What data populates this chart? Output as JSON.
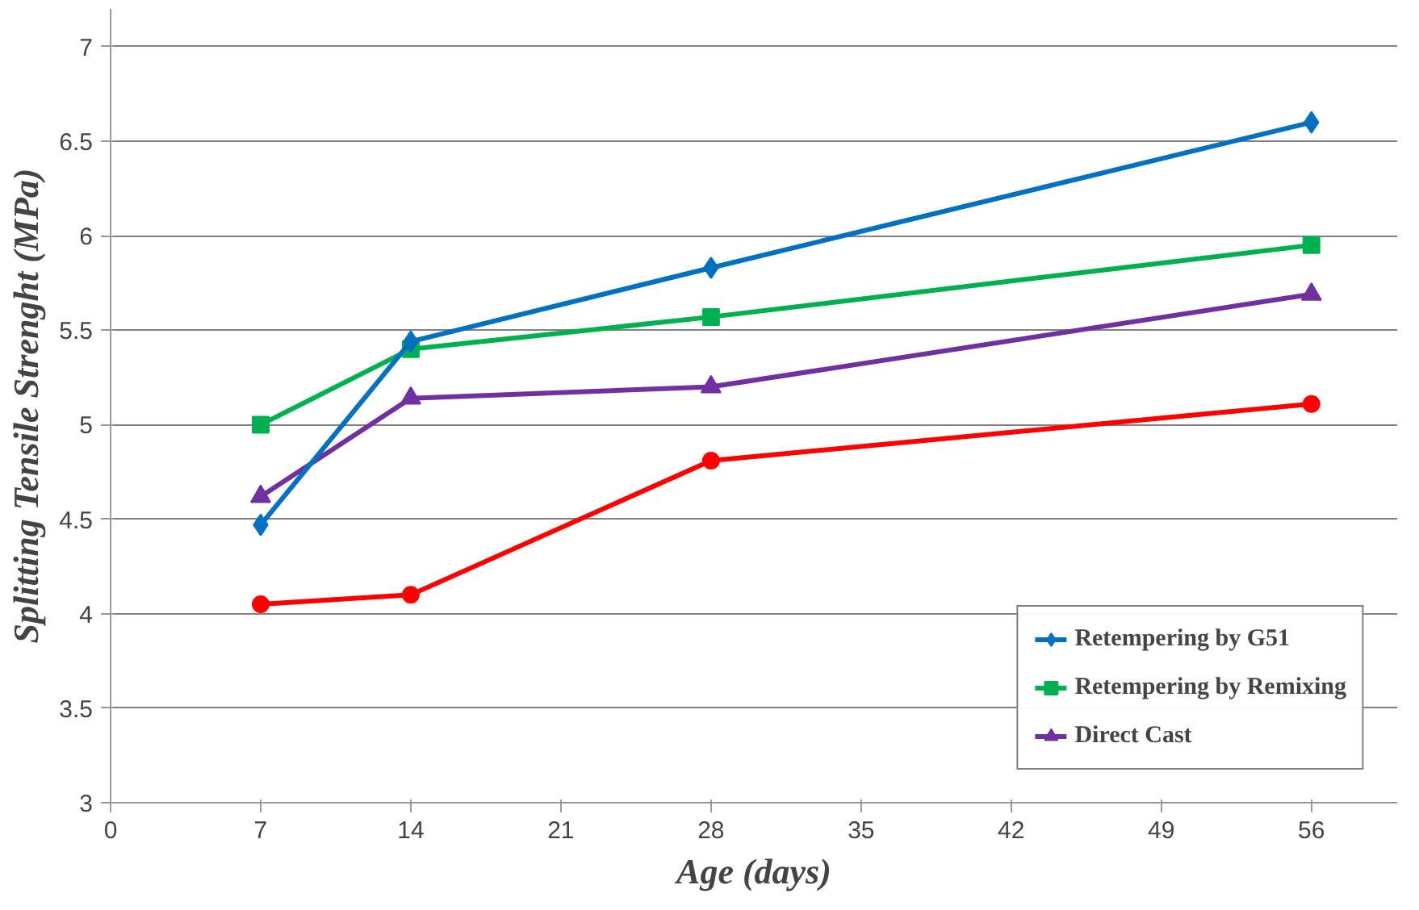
{
  "chart_data": {
    "type": "line",
    "xlabel": "Age (days)",
    "ylabel": "Splitting Tensile Strenght (MPa)",
    "x": [
      7,
      14,
      28,
      56
    ],
    "series": [
      {
        "name": "Retempering by G51",
        "color": "#0070c0",
        "marker": "diamond",
        "values": [
          4.47,
          5.44,
          5.83,
          6.6
        ]
      },
      {
        "name": "Retempering by Remixing",
        "color": "#00b050",
        "marker": "square",
        "values": [
          5.0,
          5.4,
          5.57,
          5.95
        ]
      },
      {
        "name": "Direct Cast",
        "color": "#7030a0",
        "marker": "triangle",
        "values": [
          4.62,
          5.14,
          5.2,
          5.69
        ]
      },
      {
        "color": "#ff0000",
        "marker": "circle",
        "values": [
          4.05,
          4.1,
          4.81,
          5.11
        ]
      }
    ],
    "xlim": [
      0,
      60
    ],
    "xticks": [
      0,
      7,
      14,
      21,
      28,
      35,
      42,
      49,
      56
    ],
    "ylim": [
      3,
      7.2
    ],
    "yticks": [
      3,
      3.5,
      4,
      4.5,
      5,
      5.5,
      6,
      6.5,
      7
    ],
    "grid": "y",
    "legend": "bottom right",
    "line_style": "solid"
  }
}
